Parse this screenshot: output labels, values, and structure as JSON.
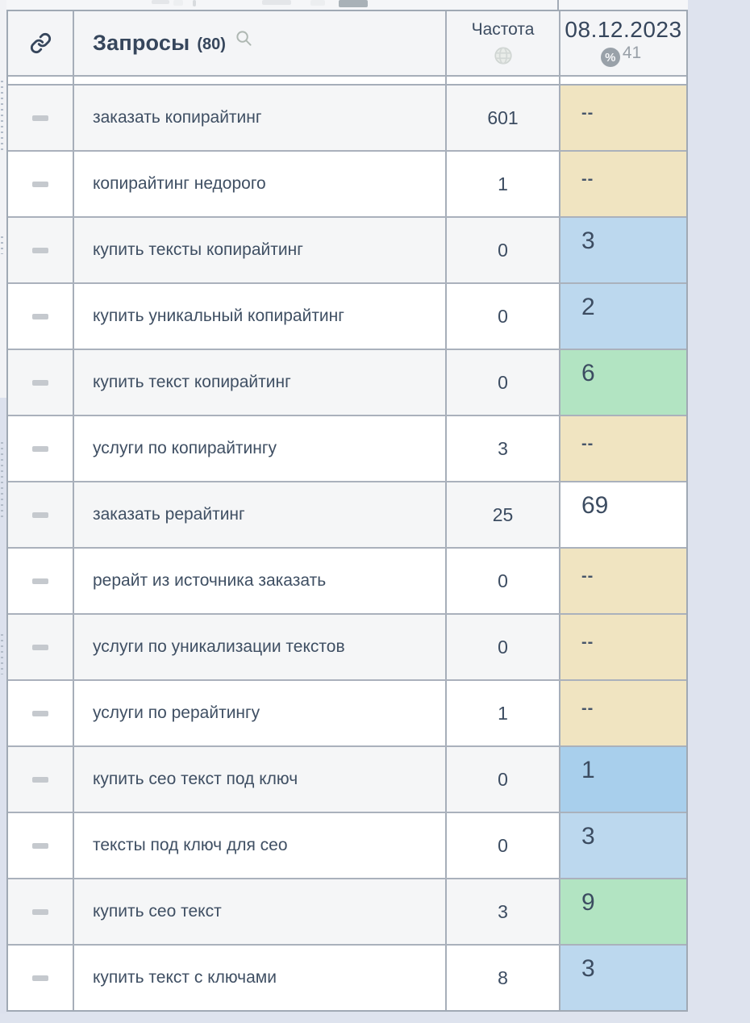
{
  "header": {
    "link_icon": "link-icon",
    "queries_label": "Запросы",
    "queries_count": "(80)",
    "search_icon": "search-icon",
    "frequency_label": "Частота",
    "frequency_icon": "globe-icon",
    "date_label": "08.12.2023",
    "percent_icon": "percent-badge-icon",
    "percent_symbol": "%",
    "percent_value": "41"
  },
  "colors": {
    "page_background": "#dee3ee",
    "header_background": "#f4f5f7",
    "row_stripe": "#f5f6f7",
    "border": "#a6aeb9",
    "text_dark": "#3c4c61",
    "text_gray": "#99a0a8",
    "position_not_found": "#f0e4c1",
    "position_blue": "#bcd8ee",
    "position_top1_blue": "#a8cfec",
    "position_green": "#b2e4c2",
    "position_plain": "#ffffff"
  },
  "rows": [
    {
      "query": "заказать копирайтинг",
      "frequency": "601",
      "position": "--",
      "position_style": "tan"
    },
    {
      "query": "копирайтинг недорого",
      "frequency": "1",
      "position": "--",
      "position_style": "tan"
    },
    {
      "query": "купить тексты копирайтинг",
      "frequency": "0",
      "position": "3",
      "position_style": "blue"
    },
    {
      "query": "купить уникальный копирайтинг",
      "frequency": "0",
      "position": "2",
      "position_style": "blue"
    },
    {
      "query": "купить текст копирайтинг",
      "frequency": "0",
      "position": "6",
      "position_style": "green"
    },
    {
      "query": "услуги по копирайтингу",
      "frequency": "3",
      "position": "--",
      "position_style": "tan"
    },
    {
      "query": "заказать рерайтинг",
      "frequency": "25",
      "position": "69",
      "position_style": "white"
    },
    {
      "query": "рерайт из источника заказать",
      "frequency": "0",
      "position": "--",
      "position_style": "tan"
    },
    {
      "query": "услуги по уникализации текстов",
      "frequency": "0",
      "position": "--",
      "position_style": "tan"
    },
    {
      "query": "услуги по рерайтингу",
      "frequency": "1",
      "position": "--",
      "position_style": "tan"
    },
    {
      "query": "купить сео текст под ключ",
      "frequency": "0",
      "position": "1",
      "position_style": "blue-strong"
    },
    {
      "query": "тексты под ключ для сео",
      "frequency": "0",
      "position": "3",
      "position_style": "blue"
    },
    {
      "query": "купить сео текст",
      "frequency": "3",
      "position": "9",
      "position_style": "green"
    },
    {
      "query": "купить текст с ключами",
      "frequency": "8",
      "position": "3",
      "position_style": "blue"
    }
  ]
}
